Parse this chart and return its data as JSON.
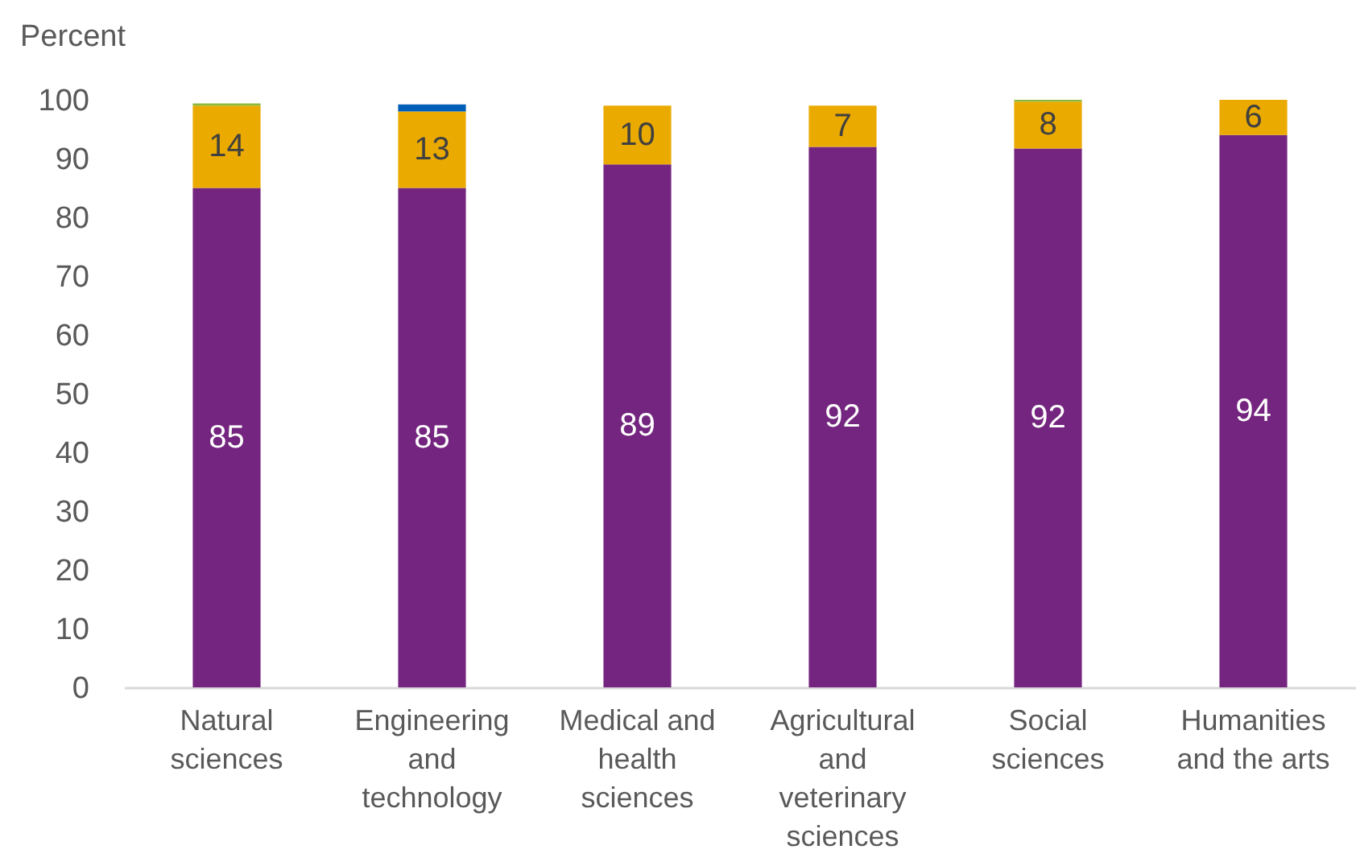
{
  "chart_data": {
    "type": "bar",
    "stacked": true,
    "ylabel": "Percent",
    "categories": [
      "Natural sciences",
      "Engineering and technology",
      "Medical and health sciences",
      "Agricultural and veterinary sciences",
      "Social sciences",
      "Humanities and the arts"
    ],
    "series": [
      {
        "color": "#74257f",
        "values": [
          85,
          85,
          89,
          92,
          91.7,
          94
        ],
        "value_labels": [
          "85",
          "85",
          "89",
          "92",
          "92",
          "94"
        ]
      },
      {
        "color": "#eaaa00",
        "values": [
          14,
          13,
          10,
          7,
          8,
          6
        ],
        "value_labels": [
          "14",
          "13",
          "10",
          "7",
          "8",
          "6"
        ]
      },
      {
        "color": "#005eb8",
        "values": [
          null,
          1.2,
          null,
          null,
          null,
          null
        ]
      },
      {
        "color": "#8ab83c",
        "values": [
          0.4,
          null,
          null,
          null,
          0.3,
          null
        ]
      }
    ],
    "ylim": [
      0,
      100
    ],
    "yticks": [
      0,
      10,
      20,
      30,
      40,
      50,
      60,
      70,
      80,
      90,
      100
    ]
  }
}
